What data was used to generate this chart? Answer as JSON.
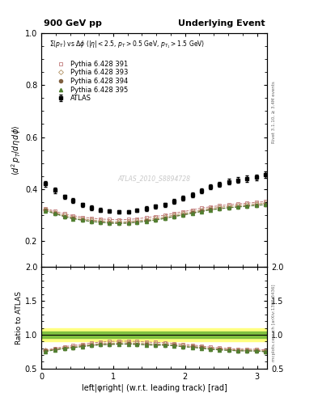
{
  "title_left": "900 GeV pp",
  "title_right": "Underlying Event",
  "subtitle": "Σ(p_{T}) vsΔφ (|η| < 2.5, p_{T} > 0.5 GeV, p_{T1} > 1.5 GeV)",
  "ylabel_main": "⟨d² p_T/dηdφ⟩",
  "ylabel_ratio": "Ratio to ATLAS",
  "xlabel": "left|φright| (w.r.t. leading track) [rad]",
  "watermark": "ATLAS_2010_S8894728",
  "right_label_main": "Rivet 3.1.10, ≥ 3.4M events",
  "right_label_ratio": "mcplots.cern.ch [arXiv:1306.3436]",
  "xlim": [
    0,
    3.14159
  ],
  "ylim_main": [
    0.1,
    1.0
  ],
  "ylim_ratio": [
    0.5,
    2.0
  ],
  "yticks_main": [
    0.2,
    0.4,
    0.6,
    0.8,
    1.0
  ],
  "yticks_ratio": [
    0.5,
    1.0,
    1.5,
    2.0
  ],
  "atlas_x": [
    0.06,
    0.19,
    0.32,
    0.44,
    0.57,
    0.7,
    0.82,
    0.95,
    1.08,
    1.21,
    1.33,
    1.46,
    1.59,
    1.72,
    1.84,
    1.97,
    2.1,
    2.23,
    2.35,
    2.48,
    2.61,
    2.74,
    2.86,
    2.99,
    3.12
  ],
  "atlas_y": [
    0.42,
    0.395,
    0.37,
    0.355,
    0.34,
    0.328,
    0.32,
    0.315,
    0.312,
    0.313,
    0.318,
    0.325,
    0.333,
    0.34,
    0.352,
    0.365,
    0.378,
    0.393,
    0.408,
    0.418,
    0.428,
    0.435,
    0.44,
    0.445,
    0.455
  ],
  "atlas_yerr": [
    0.012,
    0.01,
    0.009,
    0.009,
    0.008,
    0.008,
    0.008,
    0.007,
    0.007,
    0.007,
    0.007,
    0.008,
    0.008,
    0.008,
    0.009,
    0.009,
    0.009,
    0.01,
    0.01,
    0.01,
    0.011,
    0.011,
    0.011,
    0.012,
    0.013
  ],
  "pythia_x": [
    0.06,
    0.19,
    0.32,
    0.44,
    0.57,
    0.7,
    0.82,
    0.95,
    1.08,
    1.21,
    1.33,
    1.46,
    1.59,
    1.72,
    1.84,
    1.97,
    2.1,
    2.23,
    2.35,
    2.48,
    2.61,
    2.74,
    2.86,
    2.99,
    3.12
  ],
  "p391_y": [
    0.325,
    0.315,
    0.305,
    0.298,
    0.292,
    0.288,
    0.285,
    0.283,
    0.282,
    0.283,
    0.286,
    0.29,
    0.295,
    0.3,
    0.307,
    0.313,
    0.32,
    0.327,
    0.332,
    0.336,
    0.34,
    0.343,
    0.346,
    0.349,
    0.352
  ],
  "p393_y": [
    0.322,
    0.31,
    0.299,
    0.292,
    0.286,
    0.281,
    0.278,
    0.275,
    0.274,
    0.275,
    0.278,
    0.282,
    0.287,
    0.293,
    0.3,
    0.306,
    0.313,
    0.32,
    0.326,
    0.33,
    0.334,
    0.337,
    0.34,
    0.343,
    0.346
  ],
  "p394_y": [
    0.318,
    0.307,
    0.295,
    0.287,
    0.281,
    0.276,
    0.273,
    0.27,
    0.269,
    0.27,
    0.273,
    0.277,
    0.282,
    0.288,
    0.295,
    0.301,
    0.308,
    0.315,
    0.321,
    0.325,
    0.329,
    0.332,
    0.335,
    0.338,
    0.341
  ],
  "p395_y": [
    0.316,
    0.305,
    0.294,
    0.286,
    0.28,
    0.275,
    0.272,
    0.269,
    0.268,
    0.269,
    0.272,
    0.276,
    0.281,
    0.287,
    0.294,
    0.3,
    0.307,
    0.314,
    0.32,
    0.324,
    0.328,
    0.331,
    0.334,
    0.337,
    0.34
  ],
  "ratio_391_y": [
    0.773,
    0.797,
    0.824,
    0.839,
    0.859,
    0.878,
    0.891,
    0.899,
    0.904,
    0.904,
    0.899,
    0.892,
    0.886,
    0.882,
    0.872,
    0.858,
    0.847,
    0.833,
    0.814,
    0.804,
    0.795,
    0.788,
    0.786,
    0.785,
    0.774
  ],
  "ratio_393_y": [
    0.767,
    0.785,
    0.808,
    0.822,
    0.841,
    0.856,
    0.869,
    0.873,
    0.878,
    0.879,
    0.874,
    0.868,
    0.862,
    0.862,
    0.852,
    0.838,
    0.828,
    0.814,
    0.8,
    0.789,
    0.781,
    0.775,
    0.773,
    0.771,
    0.76
  ],
  "ratio_394_y": [
    0.757,
    0.778,
    0.797,
    0.809,
    0.826,
    0.841,
    0.853,
    0.857,
    0.862,
    0.862,
    0.859,
    0.851,
    0.847,
    0.847,
    0.839,
    0.825,
    0.815,
    0.802,
    0.787,
    0.778,
    0.769,
    0.763,
    0.761,
    0.759,
    0.749
  ],
  "ratio_395_y": [
    0.752,
    0.772,
    0.795,
    0.806,
    0.824,
    0.838,
    0.85,
    0.854,
    0.859,
    0.859,
    0.856,
    0.848,
    0.844,
    0.844,
    0.836,
    0.822,
    0.812,
    0.799,
    0.784,
    0.775,
    0.766,
    0.761,
    0.759,
    0.757,
    0.747
  ],
  "color_391": "#c07878",
  "color_393": "#b09060",
  "color_394": "#806040",
  "color_395": "#508030",
  "atlas_color": "#000000",
  "ref_band_color_yellow": "#ffff80",
  "ref_band_color_green": "#80c040",
  "ref_line_ratio": 1.0,
  "ref_band_yellow_half": 0.1,
  "ref_band_green_half": 0.05
}
